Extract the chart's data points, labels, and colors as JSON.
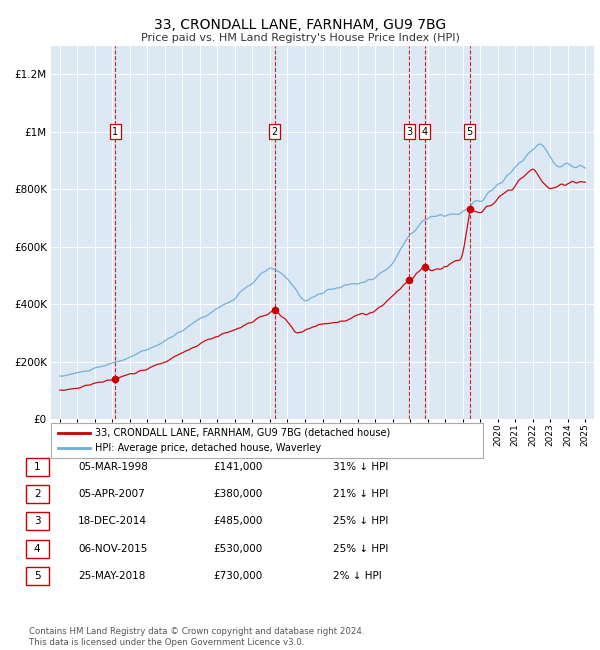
{
  "title": "33, CRONDALL LANE, FARNHAM, GU9 7BG",
  "subtitle": "Price paid vs. HM Land Registry's House Price Index (HPI)",
  "plot_bg_color": "#dce9f5",
  "transactions": [
    {
      "num": 1,
      "date": "05-MAR-1998",
      "year": 1998.17,
      "price": 141000,
      "pct": "31% ↓ HPI"
    },
    {
      "num": 2,
      "date": "05-APR-2007",
      "year": 2007.26,
      "price": 380000,
      "pct": "21% ↓ HPI"
    },
    {
      "num": 3,
      "date": "18-DEC-2014",
      "year": 2014.96,
      "price": 485000,
      "pct": "25% ↓ HPI"
    },
    {
      "num": 4,
      "date": "06-NOV-2015",
      "year": 2015.85,
      "price": 530000,
      "pct": "25% ↓ HPI"
    },
    {
      "num": 5,
      "date": "25-MAY-2018",
      "year": 2018.4,
      "price": 730000,
      "pct": "2% ↓ HPI"
    }
  ],
  "legend_entries": [
    "33, CRONDALL LANE, FARNHAM, GU9 7BG (detached house)",
    "HPI: Average price, detached house, Waverley"
  ],
  "table_rows": [
    [
      "1",
      "05-MAR-1998",
      "£141,000",
      "31% ↓ HPI"
    ],
    [
      "2",
      "05-APR-2007",
      "£380,000",
      "21% ↓ HPI"
    ],
    [
      "3",
      "18-DEC-2014",
      "£485,000",
      "25% ↓ HPI"
    ],
    [
      "4",
      "06-NOV-2015",
      "£530,000",
      "25% ↓ HPI"
    ],
    [
      "5",
      "25-MAY-2018",
      "£730,000",
      "2% ↓ HPI"
    ]
  ],
  "footer": "Contains HM Land Registry data © Crown copyright and database right 2024.\nThis data is licensed under the Open Government Licence v3.0.",
  "hpi_line_color": "#6baed6",
  "price_line_color": "#cc0000",
  "marker_color": "#cc0000",
  "dashed_line_color": "#cc0000",
  "ylim": [
    0,
    1300000
  ],
  "yticks": [
    0,
    200000,
    400000,
    600000,
    800000,
    1000000,
    1200000
  ],
  "xlim_start": 1994.5,
  "xlim_end": 2025.5,
  "marker_y": 1000000
}
